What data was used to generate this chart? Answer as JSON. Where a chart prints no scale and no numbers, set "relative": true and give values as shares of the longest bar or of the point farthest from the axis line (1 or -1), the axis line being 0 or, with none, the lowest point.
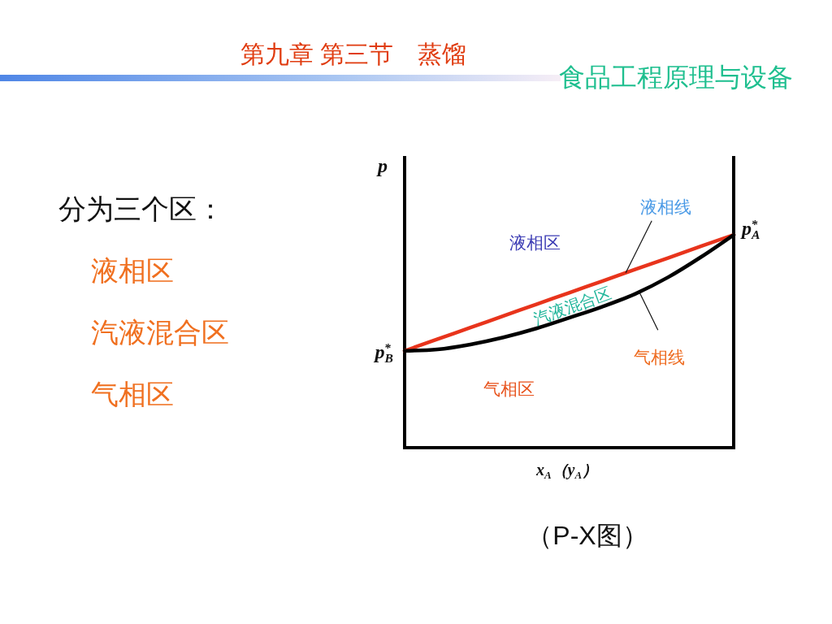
{
  "chart_data": {
    "type": "line",
    "title": "第九章 第三节　蒸馏",
    "subtitle": "食品工程原理与设备",
    "xlabel": "x$_{A}$（y$_{A}$）",
    "ylabel": "p",
    "relative": true,
    "line_style": "solid",
    "categories": [
      null,
      null,
      null,
      null,
      null,
      null,
      null,
      null,
      null,
      null,
      null
    ],
    "series": [
      {
        "name": "液相线",
        "color": "#e8341c",
        "values": [
          0.455,
          0.51,
          0.564,
          0.619,
          0.673,
          0.728,
          0.782,
          0.837,
          0.891,
          0.946,
          1
        ]
      },
      {
        "name": "气相线",
        "color": "#000000",
        "values": [
          0.455,
          0.462,
          0.485,
          0.518,
          0.56,
          0.61,
          0.662,
          0.722,
          0.8,
          0.895,
          1
        ]
      }
    ],
    "annotations": [
      "分为三个区：",
      "液相区",
      "汽液混合区",
      "气相区",
      "液相区",
      "汽液混合区",
      "气相区",
      "p$_{B}$$^{*}$",
      "p$_{A}$$^{*}$",
      "（P-X图）"
    ]
  }
}
